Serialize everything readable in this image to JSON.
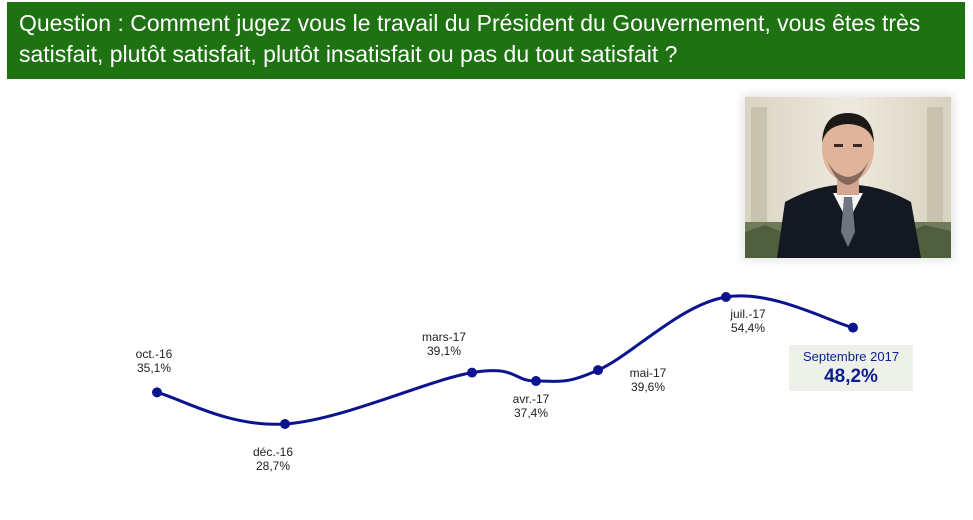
{
  "question": {
    "text": "Question : Comment jugez vous le travail du Président du Gouvernement, vous êtes très satisfait, plutôt satisfait, plutôt insatisfait ou pas du tout satisfait ?"
  },
  "colors": {
    "banner": "#1f7212",
    "line": "#0b138f",
    "callout_text": "#0b1f8f",
    "callout_bg": "#eef0ea"
  },
  "chart_data": {
    "type": "line",
    "title": "",
    "xlabel": "",
    "ylabel": "",
    "categories": [
      "oct.-16",
      "déc.-16",
      "mars-17",
      "avr.-17",
      "mai-17",
      "juil.-17",
      "Septembre 2017"
    ],
    "values": [
      35.1,
      28.7,
      39.1,
      37.4,
      39.6,
      54.4,
      48.2
    ],
    "value_labels": [
      "35,1%",
      "28,7%",
      "39,1%",
      "37,4%",
      "39,6%",
      "54,4%",
      "48,2%"
    ],
    "grid": false,
    "legend": "none"
  },
  "callout": {
    "label": "Septembre 2017",
    "value": "48,2%"
  }
}
